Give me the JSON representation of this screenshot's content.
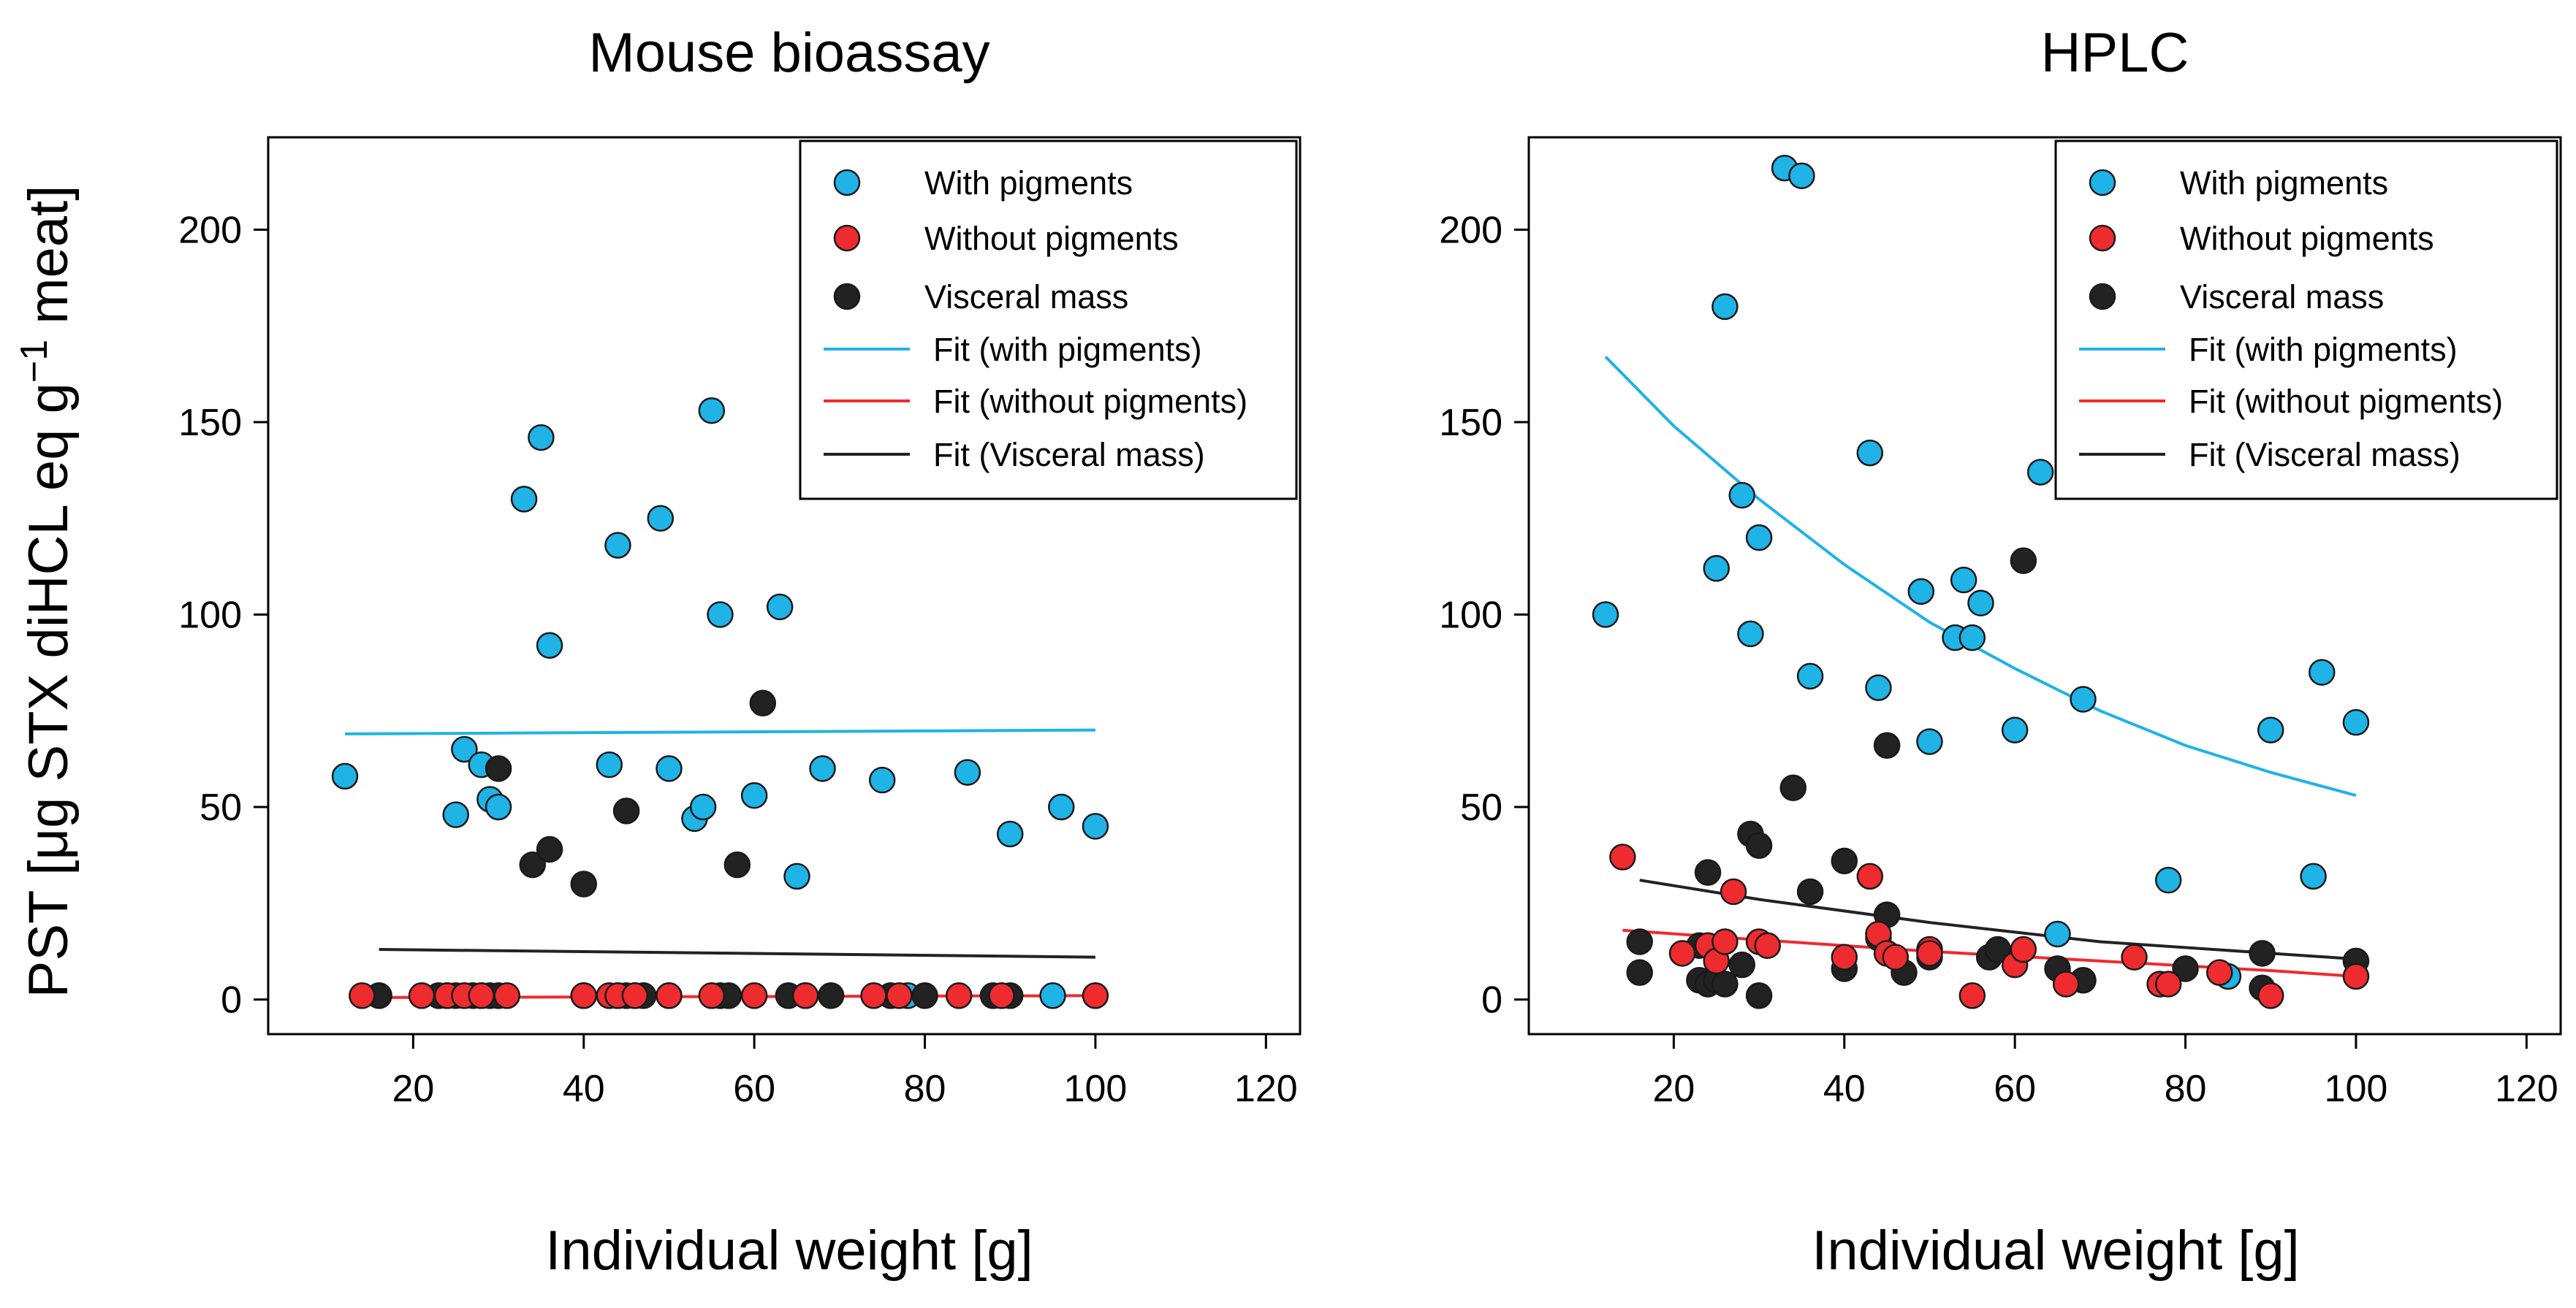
{
  "ylabel_text": "PST [μg STX diHCL eq g",
  "ylabel_sup": "−1",
  "ylabel_tail": " meat]",
  "chart_data": [
    {
      "type": "scatter",
      "title": "Mouse bioassay",
      "xlabel": "Individual weight [g]",
      "ylabel": "PST [μg STX diHCL eq g−1 meat]",
      "xlim": [
        3,
        124
      ],
      "ylim": [
        -9,
        224
      ],
      "xticks": [
        20,
        40,
        60,
        80,
        100,
        120
      ],
      "yticks": [
        0,
        50,
        100,
        150,
        200
      ],
      "legend_position": "top-right",
      "legend": [
        "With pigments",
        "Without pigments",
        "Visceral mass",
        "Fit (with pigments)",
        "Fit (without pigments)",
        "Fit (Visceral mass)"
      ],
      "colors": {
        "with": "#1fb3e6",
        "without": "#ee2b2f",
        "visceral": "#222222"
      },
      "series": [
        {
          "name": "With pigments",
          "kind": "points",
          "color": "#1fb3e6",
          "x": [
            12,
            25,
            26,
            28,
            29,
            30,
            33,
            35,
            36,
            43,
            44,
            49,
            50,
            53,
            54,
            55,
            56,
            60,
            63,
            65,
            68,
            75,
            78,
            85,
            90,
            95,
            96,
            100
          ],
          "y": [
            58,
            48,
            65,
            61,
            52,
            50,
            130,
            146,
            92,
            61,
            118,
            125,
            60,
            47,
            50,
            153,
            100,
            53,
            102,
            32,
            60,
            57,
            1,
            59,
            43,
            1,
            50,
            45
          ]
        },
        {
          "name": "Visceral mass",
          "kind": "points",
          "color": "#222222",
          "x": [
            16,
            23,
            24,
            25,
            27,
            28,
            29,
            30,
            30,
            34,
            36,
            40,
            40,
            44,
            45,
            45,
            46,
            47,
            50,
            56,
            57,
            58,
            61,
            64,
            66,
            69,
            76,
            80,
            88,
            90
          ],
          "y": [
            1,
            1,
            1,
            1,
            1,
            1,
            1,
            1,
            60,
            35,
            39,
            30,
            1,
            1,
            49,
            1,
            1,
            1,
            1,
            1,
            1,
            35,
            77,
            1,
            1,
            1,
            1,
            1,
            1,
            1
          ]
        },
        {
          "name": "Without pigments",
          "kind": "points",
          "color": "#ee2b2f",
          "x": [
            14,
            21,
            24,
            26,
            28,
            31,
            40,
            43,
            44,
            46,
            50,
            55,
            60,
            66,
            74,
            77,
            84,
            89,
            100
          ],
          "y": [
            1,
            1,
            1,
            1,
            1,
            1,
            1,
            1,
            1,
            1,
            1,
            1,
            1,
            1,
            1,
            1,
            1,
            1,
            1
          ]
        },
        {
          "name": "Fit (with pigments)",
          "kind": "line",
          "color": "#1fb3e6",
          "x": [
            12,
            100
          ],
          "y": [
            69,
            70
          ]
        },
        {
          "name": "Fit (without pigments)",
          "kind": "line",
          "color": "#ee2b2f",
          "x": [
            14,
            100
          ],
          "y": [
            0.5,
            1
          ]
        },
        {
          "name": "Fit (Visceral mass)",
          "kind": "line",
          "color": "#222222",
          "x": [
            16,
            100
          ],
          "y": [
            13,
            11
          ]
        }
      ]
    },
    {
      "type": "scatter",
      "title": "HPLC",
      "xlabel": "Individual weight [g]",
      "ylabel": "",
      "xlim": [
        3,
        124
      ],
      "ylim": [
        -9,
        224
      ],
      "xticks": [
        20,
        40,
        60,
        80,
        100,
        120
      ],
      "yticks": [
        0,
        50,
        100,
        150,
        200
      ],
      "legend_position": "top-right",
      "legend": [
        "With pigments",
        "Without pigments",
        "Visceral mass",
        "Fit (with pigments)",
        "Fit (without pigments)",
        "Fit (Visceral mass)"
      ],
      "colors": {
        "with": "#1fb3e6",
        "without": "#ee2b2f",
        "visceral": "#222222"
      },
      "series": [
        {
          "name": "With pigments",
          "kind": "points",
          "color": "#1fb3e6",
          "x": [
            12,
            25,
            26,
            28,
            29,
            30,
            33,
            35,
            36,
            43,
            44,
            49,
            50,
            53,
            54,
            55,
            56,
            60,
            63,
            65,
            68,
            78,
            85,
            90,
            95,
            96,
            100
          ],
          "y": [
            100,
            112,
            180,
            131,
            95,
            120,
            216,
            214,
            84,
            142,
            81,
            106,
            67,
            94,
            109,
            94,
            103,
            70,
            137,
            17,
            78,
            31,
            6,
            70,
            32,
            85,
            72
          ]
        },
        {
          "name": "Visceral mass",
          "kind": "points",
          "color": "#222222",
          "x": [
            16,
            16,
            23,
            23,
            24,
            24,
            25,
            26,
            28,
            29,
            30,
            30,
            34,
            36,
            40,
            40,
            44,
            45,
            45,
            47,
            50,
            57,
            58,
            61,
            65,
            68,
            80,
            89,
            89,
            100
          ],
          "y": [
            15,
            7,
            14,
            5,
            33,
            4,
            5,
            4,
            9,
            43,
            1,
            40,
            55,
            28,
            36,
            8,
            16,
            22,
            66,
            7,
            11,
            11,
            13,
            114,
            8,
            5,
            8,
            12,
            3,
            10
          ]
        },
        {
          "name": "Without pigments",
          "kind": "points",
          "color": "#ee2b2f",
          "x": [
            14,
            21,
            24,
            25,
            26,
            27,
            30,
            31,
            40,
            43,
            44,
            45,
            46,
            50,
            50,
            55,
            60,
            61,
            66,
            74,
            77,
            78,
            84,
            90,
            100
          ],
          "y": [
            37,
            12,
            14,
            10,
            15,
            28,
            15,
            14,
            11,
            32,
            17,
            12,
            11,
            13,
            12,
            1,
            9,
            13,
            4,
            11,
            4,
            4,
            7,
            1,
            6
          ]
        },
        {
          "name": "Fit (with pigments)",
          "kind": "line",
          "color": "#1fb3e6",
          "x": [
            12,
            20,
            30,
            40,
            50,
            60,
            70,
            80,
            90,
            100
          ],
          "y": [
            167,
            149,
            130,
            113,
            98,
            86,
            75,
            66,
            59,
            53
          ]
        },
        {
          "name": "Fit (without pigments)",
          "kind": "line",
          "color": "#ee2b2f",
          "x": [
            14,
            30,
            50,
            70,
            90,
            100
          ],
          "y": [
            18,
            15.5,
            12.5,
            10,
            7.5,
            6
          ]
        },
        {
          "name": "Fit (Visceral mass)",
          "kind": "line",
          "color": "#222222",
          "x": [
            16,
            30,
            50,
            70,
            90,
            100
          ],
          "y": [
            31,
            26,
            20,
            15,
            12,
            10.5
          ]
        }
      ]
    }
  ]
}
